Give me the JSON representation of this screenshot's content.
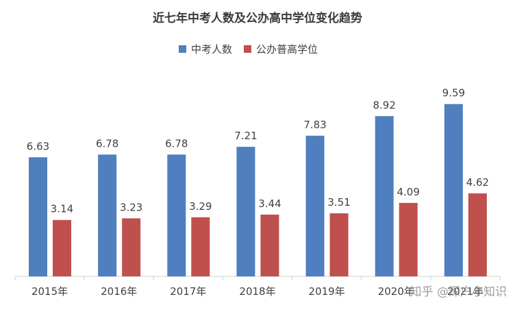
{
  "chart_data": {
    "type": "bar",
    "title": "近七年中考人数及公办高中学位变化趋势",
    "categories": [
      "2015年",
      "2016年",
      "2017年",
      "2018年",
      "2019年",
      "2020年",
      "2021年"
    ],
    "series": [
      {
        "name": "中考人数",
        "color": "#4f7fbf",
        "values": [
          6.63,
          6.78,
          6.78,
          7.21,
          7.83,
          8.92,
          9.59
        ]
      },
      {
        "name": "公办普高学位",
        "color": "#c0504d",
        "values": [
          3.14,
          3.23,
          3.29,
          3.44,
          3.51,
          4.09,
          4.62
        ]
      }
    ],
    "ylim": [
      0,
      10.5
    ],
    "grid": false,
    "legend_position": "top"
  },
  "watermark": "知乎 @深户小知识"
}
